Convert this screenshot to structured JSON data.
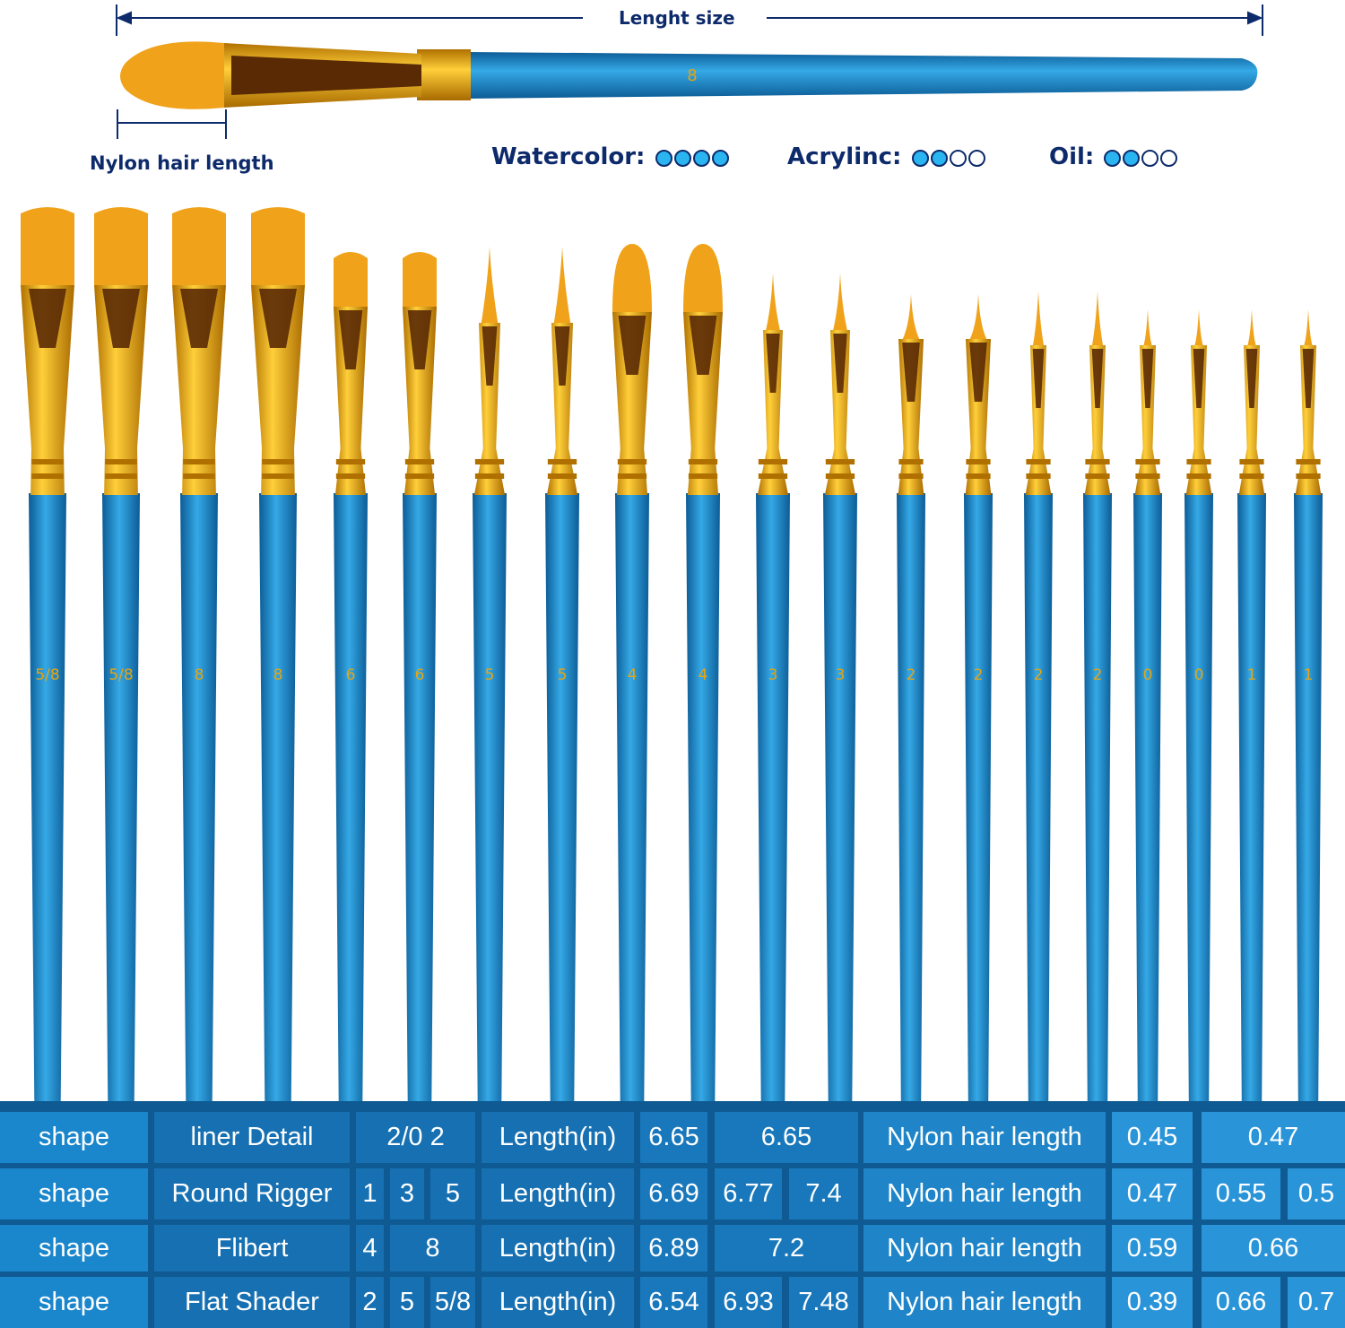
{
  "header": {
    "length_label": "Lenght  size",
    "nylon_label": "Nylon hair length",
    "sample_brush_number": "8",
    "ratings": [
      {
        "label": "Watercolor:",
        "filled": 4,
        "total": 4
      },
      {
        "label": "Acrylinc:",
        "filled": 2,
        "total": 4
      },
      {
        "label": "Oil:",
        "filled": 2,
        "total": 4
      }
    ]
  },
  "colors": {
    "handle": "#1d8fd0",
    "ferrule": "#e7a411",
    "hair": "#f0a21a",
    "table_dark": "#0f5a92",
    "rating_fill": "#2ab5f0",
    "text_dark": "#0d2a6b"
  },
  "brushes": [
    {
      "size": "5/8",
      "tip": "flat"
    },
    {
      "size": "5/8",
      "tip": "flat"
    },
    {
      "size": "8",
      "tip": "flat"
    },
    {
      "size": "8",
      "tip": "flat"
    },
    {
      "size": "6",
      "tip": "flat"
    },
    {
      "size": "6",
      "tip": "flat"
    },
    {
      "size": "5",
      "tip": "round"
    },
    {
      "size": "5",
      "tip": "round"
    },
    {
      "size": "4",
      "tip": "filbert"
    },
    {
      "size": "4",
      "tip": "filbert"
    },
    {
      "size": "3",
      "tip": "round"
    },
    {
      "size": "3",
      "tip": "round"
    },
    {
      "size": "2",
      "tip": "liner"
    },
    {
      "size": "2",
      "tip": "liner"
    },
    {
      "size": "2",
      "tip": "round"
    },
    {
      "size": "2",
      "tip": "round"
    },
    {
      "size": "0",
      "tip": "round"
    },
    {
      "size": "0",
      "tip": "round"
    },
    {
      "size": "1",
      "tip": "round"
    },
    {
      "size": "1",
      "tip": "round"
    }
  ],
  "table": {
    "rows": [
      {
        "shape": "shape",
        "name": "liner Detail",
        "sizes": [
          "2/0 2"
        ],
        "length_label": "Length(in)",
        "lengths": [
          "6.65",
          "6.65"
        ],
        "hair_label": "Nylon hair length",
        "hair": [
          "0.45",
          "0.47"
        ]
      },
      {
        "shape": "shape",
        "name": "Round Rigger",
        "sizes": [
          "1",
          "3",
          "5"
        ],
        "length_label": "Length(in)",
        "lengths": [
          "6.69",
          "6.77",
          "7.4"
        ],
        "hair_label": "Nylon hair length",
        "hair": [
          "0.47",
          "0.55",
          "0.5"
        ]
      },
      {
        "shape": "shape",
        "name": "Flibert",
        "sizes": [
          "4",
          "8"
        ],
        "length_label": "Length(in)",
        "lengths": [
          "6.89",
          "7.2"
        ],
        "hair_label": "Nylon hair length",
        "hair": [
          "0.59",
          "0.66"
        ]
      },
      {
        "shape": "shape",
        "name": "Flat Shader",
        "sizes": [
          "2",
          "5",
          "5/8"
        ],
        "length_label": "Length(in)",
        "lengths": [
          "6.54",
          "6.93",
          "7.48"
        ],
        "hair_label": "Nylon hair length",
        "hair": [
          "0.39",
          "0.66",
          "0.7"
        ]
      }
    ]
  }
}
